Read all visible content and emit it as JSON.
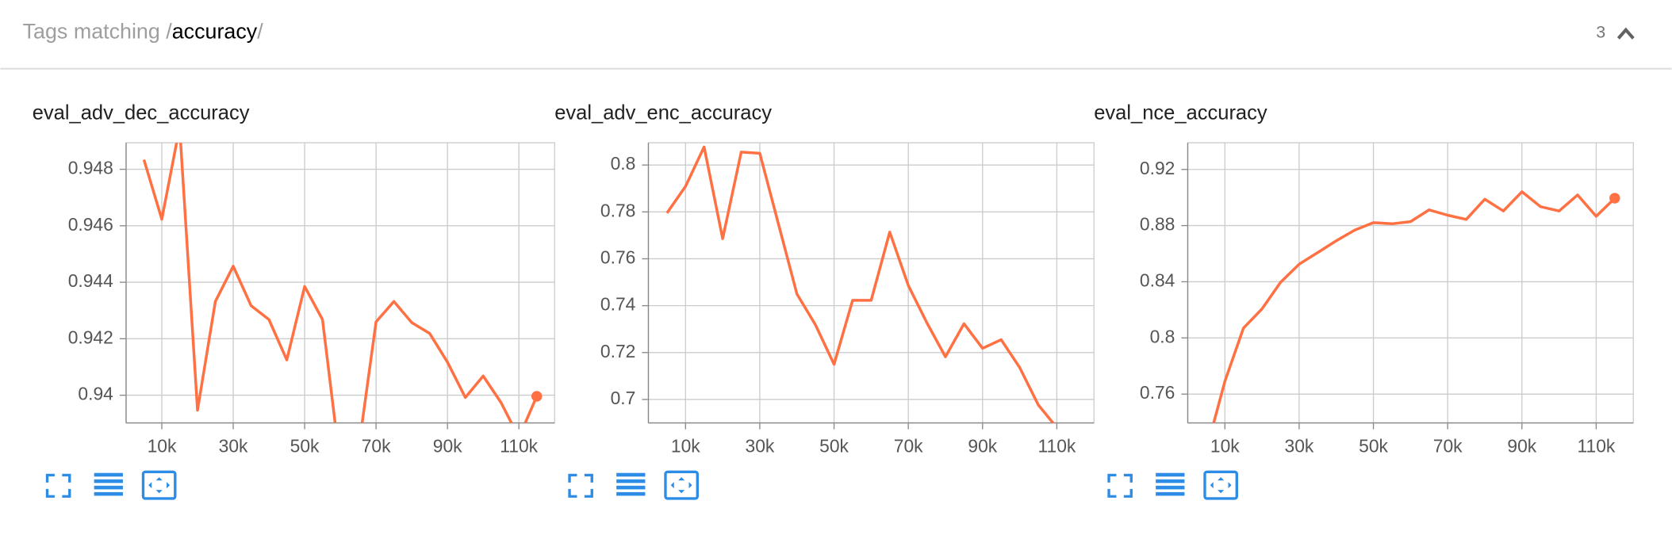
{
  "header": {
    "prefix": "Tags matching /",
    "pattern": "accuracy",
    "suffix": "/",
    "count": 3
  },
  "chart_data": [
    {
      "type": "line",
      "title": "eval_adv_dec_accuracy",
      "color": "#ff7043",
      "grid": true,
      "x": [
        5000,
        10000,
        15000,
        20000,
        25000,
        30000,
        35000,
        40000,
        45000,
        50000,
        55000,
        60000,
        65000,
        70000,
        75000,
        80000,
        85000,
        90000,
        95000,
        100000,
        105000,
        110000,
        115000
      ],
      "series": [
        {
          "values": [
            0.94834,
            0.94623,
            0.9495,
            0.93947,
            0.94332,
            0.94457,
            0.94317,
            0.94268,
            0.94125,
            0.94385,
            0.94268,
            0.9375,
            0.938,
            0.9426,
            0.94332,
            0.94257,
            0.94219,
            0.94117,
            0.93992,
            0.94068,
            0.93974,
            0.9385,
            0.93996
          ]
        }
      ],
      "xlim": [
        0,
        120000
      ],
      "xticks": [
        {
          "value": 10000,
          "label": "10k"
        },
        {
          "value": 30000,
          "label": "30k"
        },
        {
          "value": 50000,
          "label": "50k"
        },
        {
          "value": 70000,
          "label": "70k"
        },
        {
          "value": 90000,
          "label": "90k"
        },
        {
          "value": 110000,
          "label": "110k"
        }
      ],
      "ylim": [
        0.93902,
        0.94894
      ],
      "yticks": [
        0.94,
        0.942,
        0.944,
        0.946,
        0.948
      ]
    },
    {
      "type": "line",
      "title": "eval_adv_enc_accuracy",
      "color": "#ff7043",
      "grid": true,
      "x": [
        5000,
        10000,
        15000,
        20000,
        25000,
        30000,
        35000,
        40000,
        45000,
        50000,
        55000,
        60000,
        65000,
        70000,
        75000,
        80000,
        85000,
        90000,
        95000,
        100000,
        105000,
        110000
      ],
      "series": [
        {
          "values": [
            0.7795,
            0.7909,
            0.8077,
            0.7686,
            0.8055,
            0.805,
            0.775,
            0.745,
            0.7318,
            0.715,
            0.7423,
            0.7423,
            0.7714,
            0.7486,
            0.7327,
            0.7182,
            0.7323,
            0.7218,
            0.7255,
            0.7136,
            0.6977,
            0.688
          ]
        }
      ],
      "xlim": [
        0,
        120000
      ],
      "xticks": [
        {
          "value": 10000,
          "label": "10k"
        },
        {
          "value": 30000,
          "label": "30k"
        },
        {
          "value": 50000,
          "label": "50k"
        },
        {
          "value": 70000,
          "label": "70k"
        },
        {
          "value": 90000,
          "label": "90k"
        },
        {
          "value": 110000,
          "label": "110k"
        }
      ],
      "ylim": [
        0.69,
        0.8095
      ],
      "yticks": [
        0.7,
        0.72,
        0.74,
        0.76,
        0.78,
        0.8
      ]
    },
    {
      "type": "line",
      "title": "eval_nce_accuracy",
      "color": "#ff7043",
      "grid": true,
      "x": [
        5000,
        10000,
        15000,
        20000,
        25000,
        30000,
        35000,
        40000,
        45000,
        50000,
        55000,
        60000,
        65000,
        70000,
        75000,
        80000,
        85000,
        90000,
        95000,
        100000,
        105000,
        110000,
        115000
      ],
      "series": [
        {
          "values": [
            0.72,
            0.7691,
            0.807,
            0.8207,
            0.8396,
            0.8525,
            0.8608,
            0.8692,
            0.8768,
            0.8821,
            0.8813,
            0.8828,
            0.8912,
            0.8874,
            0.8844,
            0.8988,
            0.8904,
            0.9041,
            0.8935,
            0.8904,
            0.9018,
            0.8866,
            0.8995
          ]
        }
      ],
      "xlim": [
        0,
        120000
      ],
      "xticks": [
        {
          "value": 10000,
          "label": "10k"
        },
        {
          "value": 30000,
          "label": "30k"
        },
        {
          "value": 50000,
          "label": "50k"
        },
        {
          "value": 70000,
          "label": "70k"
        },
        {
          "value": 90000,
          "label": "90k"
        },
        {
          "value": 110000,
          "label": "110k"
        }
      ],
      "ylim": [
        0.7395,
        0.939
      ],
      "yticks": [
        0.76,
        0.8,
        0.84,
        0.88,
        0.92
      ]
    }
  ]
}
